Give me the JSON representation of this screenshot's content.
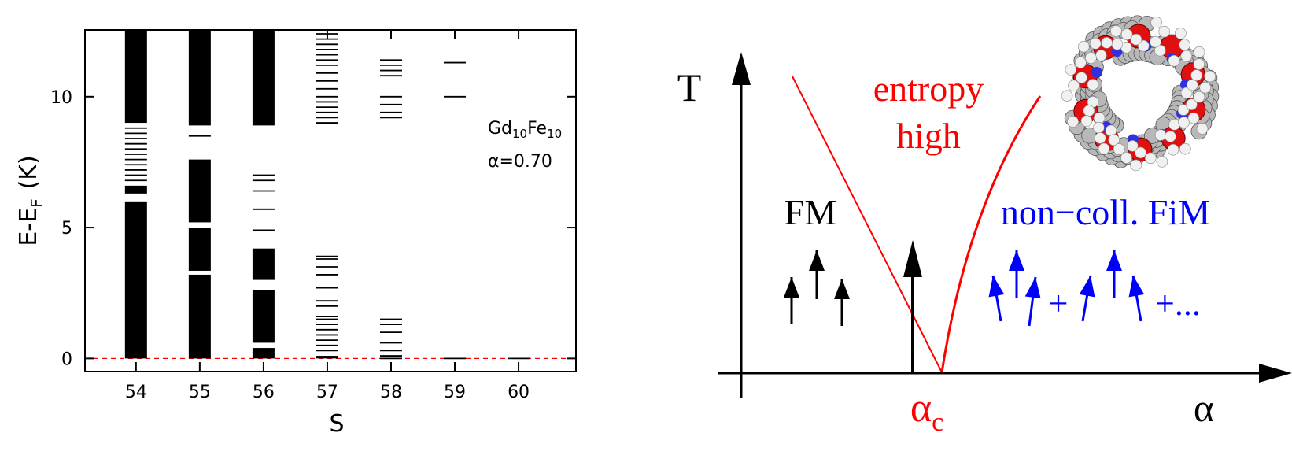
{
  "chart_data": {
    "type": "levels",
    "xlabel": "S",
    "ylabel": {
      "main": "E-E",
      "sub": "F",
      "unit": "(K)"
    },
    "annotation": {
      "element1": "Gd",
      "count1": "10",
      "element2": "Fe",
      "count2": "10",
      "param": "α=0.70"
    },
    "xlim": [
      53.2,
      60.9
    ],
    "ylim": [
      -0.5,
      12.55
    ],
    "xticks": [
      54,
      55,
      56,
      57,
      58,
      59,
      60
    ],
    "yticks": [
      0,
      5,
      10
    ],
    "color": "#000000",
    "reference_line": {
      "value": 0,
      "color": "#ff0000"
    },
    "series": [
      {
        "x": 54,
        "bands": [
          [
            0,
            6.0
          ],
          [
            6.3,
            6.6
          ],
          [
            9.0,
            12.55
          ]
        ],
        "levels": [
          6.8,
          7.0,
          7.2,
          7.4,
          7.6,
          7.8,
          8.0,
          8.2,
          8.4,
          8.6,
          8.8
        ]
      },
      {
        "x": 55,
        "bands": [
          [
            0,
            3.2
          ],
          [
            3.35,
            5.0
          ],
          [
            5.2,
            7.6
          ],
          [
            8.9,
            12.55
          ]
        ],
        "levels": [
          8.5
        ]
      },
      {
        "x": 56,
        "bands": [
          [
            0,
            0.4
          ],
          [
            0.6,
            2.6
          ],
          [
            3.0,
            4.2
          ],
          [
            8.9,
            12.55
          ]
        ],
        "levels": [
          4.9,
          5.7,
          6.4,
          6.8,
          7.0
        ]
      },
      {
        "x": 57,
        "bands": [
          [
            0,
            0.1
          ]
        ],
        "levels": [
          0.3,
          0.5,
          0.7,
          0.9,
          1.1,
          1.3,
          1.5,
          1.6,
          2.0,
          2.2,
          2.7,
          3.2,
          3.5,
          3.8,
          3.9,
          9.0,
          9.2,
          9.4,
          9.6,
          9.8,
          10.0,
          10.3,
          10.6,
          10.9,
          11.2,
          11.4,
          11.6,
          11.8,
          12.0,
          12.2,
          12.4
        ]
      },
      {
        "x": 58,
        "bands": [],
        "levels": [
          0,
          0.1,
          0.3,
          0.6,
          1.0,
          1.3,
          1.5,
          9.2,
          9.4,
          9.7,
          10.0,
          10.8,
          11.0,
          11.2,
          11.4
        ]
      },
      {
        "x": 59,
        "bands": [],
        "levels": [
          0,
          10.0,
          11.3
        ]
      },
      {
        "x": 60,
        "bands": [],
        "levels": [
          0
        ]
      }
    ]
  },
  "diagram": {
    "y_axis": "T",
    "x_axis": "α",
    "critical": {
      "main": "α",
      "sub": "c"
    },
    "region_top": [
      "entropy",
      "high"
    ],
    "region_left": "FM",
    "region_right": "non−coll. FiM",
    "plus": "+",
    "plus_more": "+..."
  }
}
